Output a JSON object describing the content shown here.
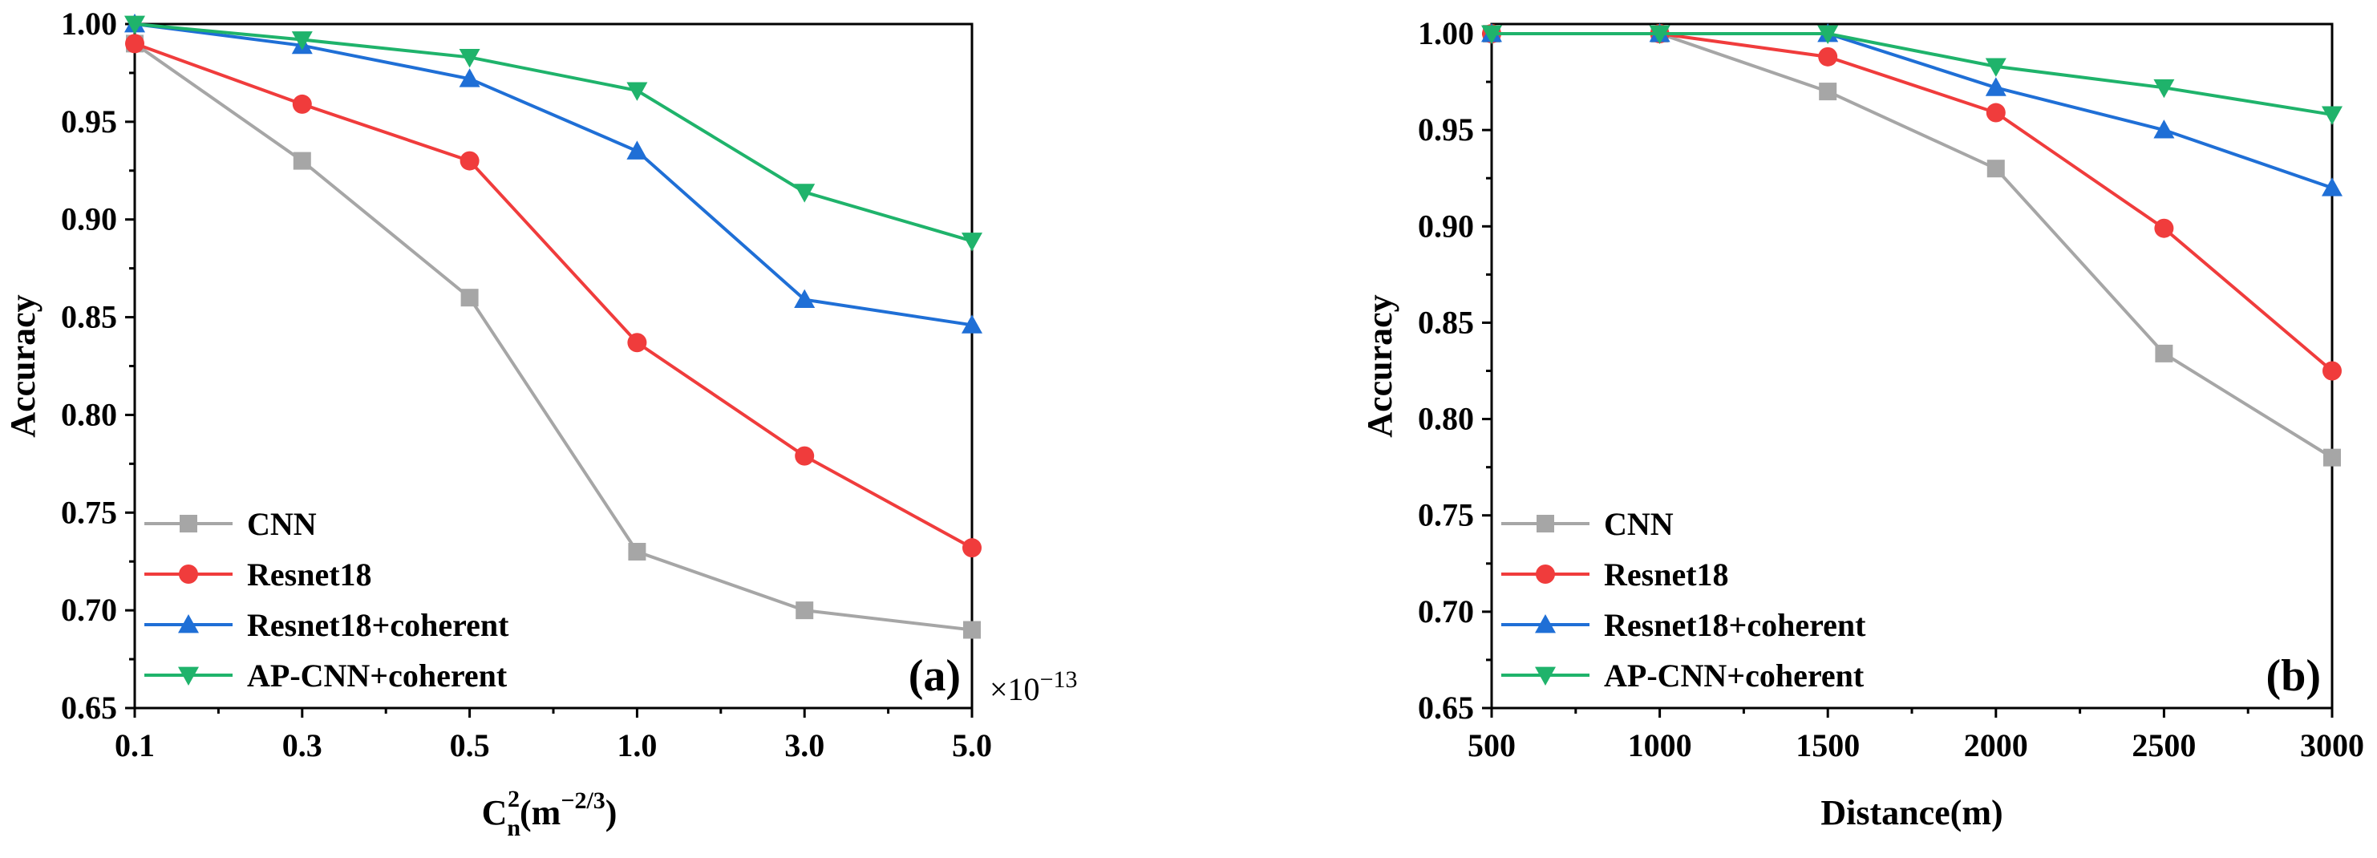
{
  "colors": {
    "CNN": "#a6a6a6",
    "Resnet18": "#f03c3c",
    "Resnet18+coherent": "#1f6fd6",
    "AP-CNN+coherent": "#1fb36b"
  },
  "chart_data": [
    {
      "type": "line",
      "panel_label": "(a)",
      "xlabel_base": "C",
      "xlabel_sub": "n",
      "xlabel_sup": "2",
      "xlabel_unit_open": "(m",
      "xlabel_unit_exp": "−2/3",
      "xlabel_unit_close": ")",
      "ylabel": "Accuracy",
      "x_scale_note": "×10",
      "x_scale_exp": "−13",
      "categories": [
        "0.1",
        "0.3",
        "0.5",
        "1.0",
        "3.0",
        "5.0"
      ],
      "ylim": [
        0.65,
        1.0
      ],
      "yticks": [
        "0.65",
        "0.70",
        "0.75",
        "0.80",
        "0.85",
        "0.90",
        "0.95",
        "1.00"
      ],
      "legend_position": "bottom-left",
      "series": [
        {
          "name": "CNN",
          "marker": "square",
          "values": [
            0.99,
            0.93,
            0.86,
            0.73,
            0.7,
            0.69
          ]
        },
        {
          "name": "Resnet18",
          "marker": "circle",
          "values": [
            0.99,
            0.959,
            0.93,
            0.837,
            0.779,
            0.732
          ]
        },
        {
          "name": "Resnet18+coherent",
          "marker": "triangle-up",
          "values": [
            1.0,
            0.989,
            0.972,
            0.935,
            0.859,
            0.846
          ]
        },
        {
          "name": "AP-CNN+coherent",
          "marker": "triangle-down",
          "values": [
            1.0,
            0.992,
            0.983,
            0.966,
            0.914,
            0.889
          ]
        }
      ]
    },
    {
      "type": "line",
      "panel_label": "(b)",
      "xlabel": "Distance(m)",
      "ylabel": "Accuracy",
      "categories": [
        "500",
        "1000",
        "1500",
        "2000",
        "2500",
        "3000"
      ],
      "x": [
        500,
        1000,
        1500,
        2000,
        2500,
        3000
      ],
      "ylim": [
        0.65,
        1.005
      ],
      "yticks": [
        "0.65",
        "0.70",
        "0.75",
        "0.80",
        "0.85",
        "0.90",
        "0.95",
        "1.00"
      ],
      "legend_position": "bottom-left",
      "series": [
        {
          "name": "CNN",
          "marker": "square",
          "values": [
            1.0,
            1.0,
            0.97,
            0.93,
            0.834,
            0.78
          ]
        },
        {
          "name": "Resnet18",
          "marker": "circle",
          "values": [
            1.0,
            1.0,
            0.988,
            0.959,
            0.899,
            0.825
          ]
        },
        {
          "name": "Resnet18+coherent",
          "marker": "triangle-up",
          "values": [
            1.0,
            1.0,
            1.0,
            0.972,
            0.95,
            0.92
          ]
        },
        {
          "name": "AP-CNN+coherent",
          "marker": "triangle-down",
          "values": [
            1.0,
            1.0,
            1.0,
            0.983,
            0.972,
            0.958
          ]
        }
      ]
    }
  ]
}
